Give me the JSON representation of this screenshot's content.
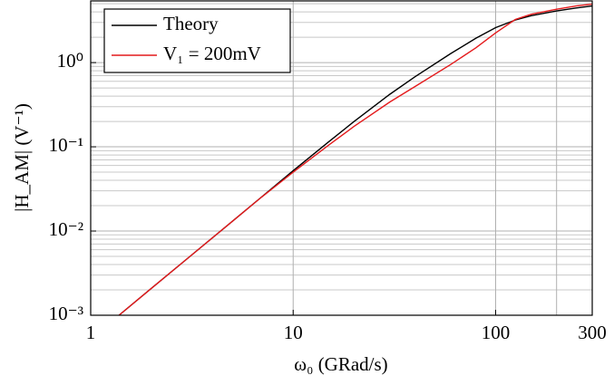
{
  "chart_data": {
    "type": "line",
    "x_label": "ω₀ (GRad/s)",
    "y_label": "|H_AM| (V⁻¹)",
    "x": [
      1.38,
      2,
      3,
      5,
      7,
      10,
      15,
      20,
      30,
      40,
      60,
      80,
      100,
      125,
      150,
      200,
      250,
      300
    ],
    "series": [
      {
        "name": "Theory",
        "color": "#000000",
        "values": [
          0.001,
          0.0021,
          0.0047,
          0.013,
          0.0255,
          0.052,
          0.115,
          0.2,
          0.42,
          0.68,
          1.28,
          1.95,
          2.6,
          3.2,
          3.6,
          4.1,
          4.45,
          4.7
        ]
      },
      {
        "name": "V₁ = 200mV",
        "color": "#e41a1c",
        "values": [
          0.001,
          0.0021,
          0.0047,
          0.013,
          0.0254,
          0.05,
          0.105,
          0.175,
          0.34,
          0.52,
          0.95,
          1.5,
          2.25,
          3.25,
          3.75,
          4.3,
          4.7,
          4.95
        ]
      }
    ],
    "xlim": [
      1,
      300
    ],
    "ylim": [
      0.001,
      5.4
    ],
    "xticks": [
      1,
      10,
      100,
      300
    ],
    "x_extra_grid": [
      200
    ],
    "yticks": [
      {
        "value": 0.001,
        "label": "10⁻³"
      },
      {
        "value": 0.01,
        "label": "10⁻²"
      },
      {
        "value": 0.1,
        "label": "10⁻¹"
      },
      {
        "value": 1,
        "label": "10⁰"
      }
    ],
    "log_x": true,
    "log_y": true,
    "grid": true,
    "y_minor_grid": true,
    "legend": "upper-left"
  }
}
